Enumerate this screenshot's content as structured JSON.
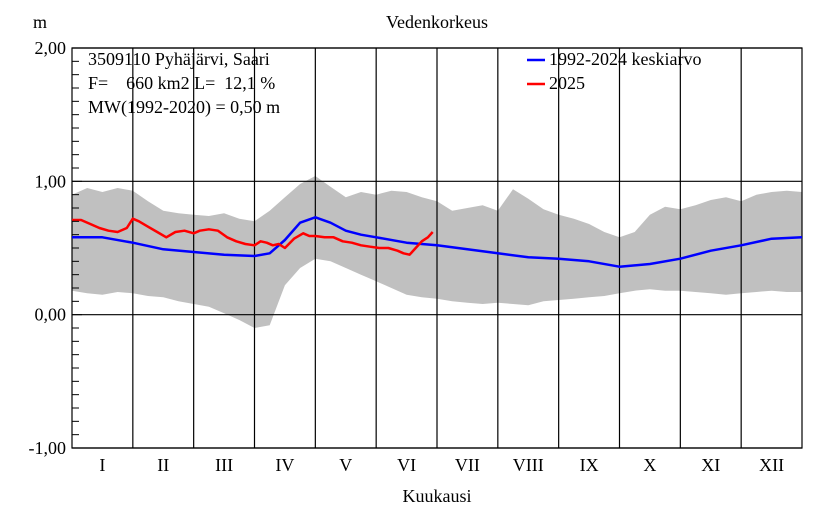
{
  "chart_data": {
    "type": "line",
    "title": "Vedenkorkeus",
    "xlabel": "Kuukausi",
    "ylabel": "m",
    "ylim": [
      -1.0,
      2.0
    ],
    "yticks": [
      -1.0,
      0.0,
      1.0,
      2.0
    ],
    "ytick_labels": [
      "-1,00",
      "0,00",
      "1,00",
      "2,00"
    ],
    "xlim": [
      0,
      12
    ],
    "categories": [
      "I",
      "II",
      "III",
      "IV",
      "V",
      "VI",
      "VII",
      "VIII",
      "IX",
      "X",
      "XI",
      "XII"
    ],
    "grid": true,
    "legend_position": "top-right",
    "info": {
      "station": "3509110 Pyhäjärvi, Saari",
      "area": "F=    660 km2 L=  12,1 %",
      "mean_water": "MW(1992-2020) = 0,50 m"
    },
    "colors": {
      "mean": "#0000ff",
      "current": "#ff0000",
      "band": "#c0c0c0"
    },
    "band": {
      "x": [
        0,
        0.25,
        0.5,
        0.75,
        1,
        1.25,
        1.5,
        1.75,
        2,
        2.25,
        2.5,
        2.75,
        3,
        3.25,
        3.5,
        3.75,
        4,
        4.25,
        4.5,
        4.75,
        5,
        5.25,
        5.5,
        5.75,
        6,
        6.25,
        6.5,
        6.75,
        7,
        7.25,
        7.5,
        7.75,
        8,
        8.25,
        8.5,
        8.75,
        9,
        9.25,
        9.5,
        9.75,
        10,
        10.25,
        10.5,
        10.75,
        11,
        11.25,
        11.5,
        11.75,
        12
      ],
      "upper": [
        0.9,
        0.95,
        0.92,
        0.95,
        0.93,
        0.85,
        0.78,
        0.76,
        0.75,
        0.74,
        0.76,
        0.72,
        0.7,
        0.78,
        0.88,
        0.98,
        1.04,
        0.96,
        0.88,
        0.92,
        0.9,
        0.93,
        0.92,
        0.88,
        0.85,
        0.78,
        0.8,
        0.82,
        0.78,
        0.94,
        0.87,
        0.79,
        0.75,
        0.72,
        0.68,
        0.62,
        0.58,
        0.62,
        0.75,
        0.81,
        0.79,
        0.82,
        0.86,
        0.88,
        0.85,
        0.9,
        0.92,
        0.93,
        0.92
      ],
      "lower": [
        0.18,
        0.16,
        0.15,
        0.17,
        0.16,
        0.14,
        0.13,
        0.1,
        0.08,
        0.06,
        0.01,
        -0.04,
        -0.1,
        -0.08,
        0.22,
        0.35,
        0.42,
        0.4,
        0.35,
        0.3,
        0.25,
        0.2,
        0.15,
        0.13,
        0.12,
        0.1,
        0.09,
        0.08,
        0.09,
        0.08,
        0.07,
        0.1,
        0.11,
        0.12,
        0.13,
        0.14,
        0.16,
        0.18,
        0.19,
        0.18,
        0.18,
        0.17,
        0.16,
        0.15,
        0.16,
        0.17,
        0.18,
        0.17,
        0.17
      ]
    },
    "series": [
      {
        "name": "1992-2024 keskiarvo",
        "x": [
          0,
          0.5,
          1,
          1.5,
          2,
          2.5,
          3,
          3.25,
          3.5,
          3.75,
          4,
          4.25,
          4.5,
          4.75,
          5,
          5.5,
          6,
          6.5,
          7,
          7.5,
          8,
          8.5,
          9,
          9.5,
          10,
          10.5,
          11,
          11.5,
          12
        ],
        "y": [
          0.58,
          0.58,
          0.54,
          0.49,
          0.47,
          0.45,
          0.44,
          0.46,
          0.56,
          0.69,
          0.73,
          0.69,
          0.63,
          0.6,
          0.58,
          0.54,
          0.52,
          0.49,
          0.46,
          0.43,
          0.42,
          0.4,
          0.36,
          0.38,
          0.42,
          0.48,
          0.52,
          0.57,
          0.58
        ]
      },
      {
        "name": "2025",
        "x": [
          0,
          0.15,
          0.3,
          0.45,
          0.6,
          0.75,
          0.9,
          1.0,
          1.1,
          1.25,
          1.4,
          1.55,
          1.7,
          1.85,
          2.0,
          2.1,
          2.25,
          2.4,
          2.55,
          2.7,
          2.85,
          3.0,
          3.1,
          3.2,
          3.3,
          3.4,
          3.5,
          3.65,
          3.8,
          3.9,
          4.0,
          4.15,
          4.3,
          4.45,
          4.6,
          4.75,
          4.9,
          5.05,
          5.2,
          5.35,
          5.45,
          5.55,
          5.65,
          5.75,
          5.85,
          5.93
        ],
        "y": [
          0.71,
          0.71,
          0.68,
          0.65,
          0.63,
          0.62,
          0.65,
          0.72,
          0.7,
          0.66,
          0.62,
          0.58,
          0.62,
          0.63,
          0.61,
          0.63,
          0.64,
          0.63,
          0.58,
          0.55,
          0.53,
          0.52,
          0.55,
          0.54,
          0.52,
          0.53,
          0.5,
          0.57,
          0.61,
          0.59,
          0.59,
          0.58,
          0.58,
          0.55,
          0.54,
          0.52,
          0.51,
          0.5,
          0.5,
          0.48,
          0.46,
          0.45,
          0.5,
          0.55,
          0.58,
          0.62
        ]
      }
    ]
  }
}
